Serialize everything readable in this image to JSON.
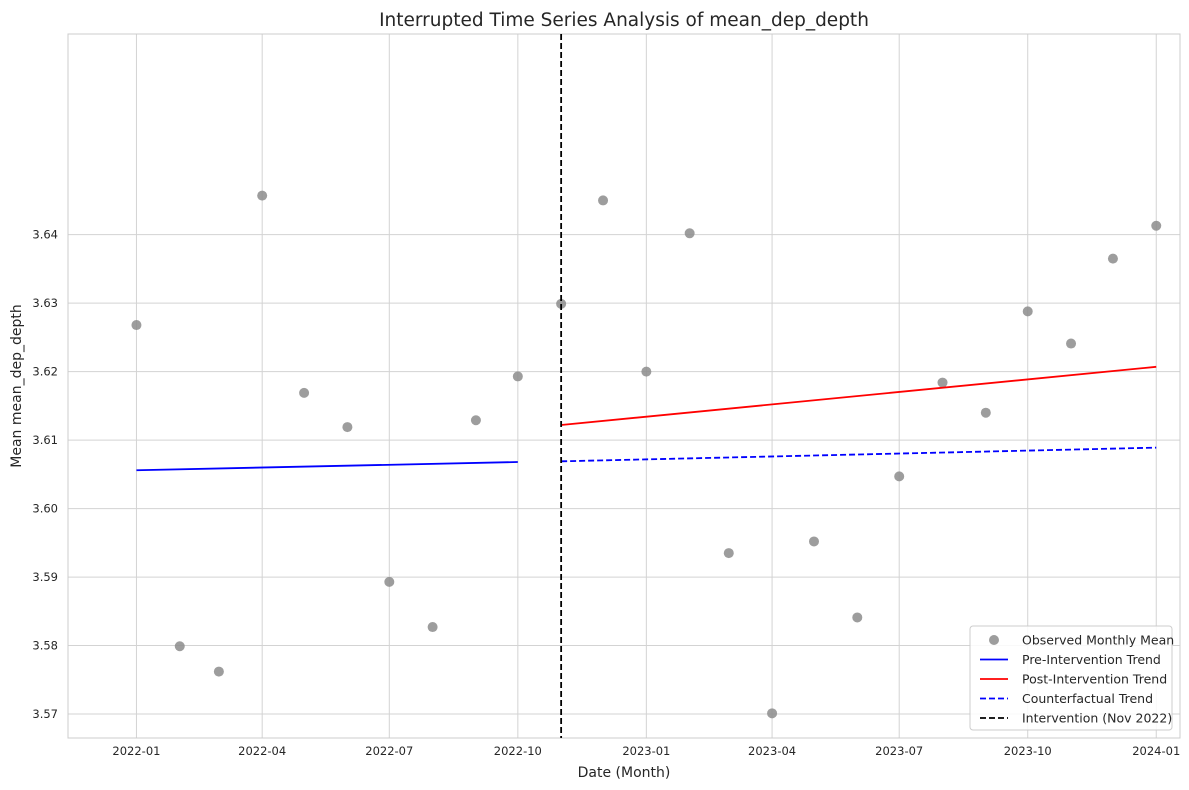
{
  "chart_data": {
    "type": "scatter",
    "title": "Interrupted Time Series Analysis of mean_dep_depth",
    "xlabel": "Date (Month)",
    "ylabel": "Mean mean_dep_depth",
    "xlim": [
      "2021-11-13",
      "2024-01-18"
    ],
    "ylim": [
      3.5665,
      3.6693
    ],
    "x_ticks": [
      "2022-01",
      "2022-04",
      "2022-07",
      "2022-10",
      "2023-01",
      "2023-04",
      "2023-07",
      "2023-10",
      "2024-01"
    ],
    "y_ticks": [
      3.57,
      3.58,
      3.59,
      3.6,
      3.61,
      3.62,
      3.63,
      3.64
    ],
    "grid": true,
    "legend_position": "lower-right",
    "series": [
      {
        "name": "Observed Monthly Mean",
        "kind": "scatter",
        "color": "#8c8c8c",
        "x": [
          "2022-01-01",
          "2022-02-01",
          "2022-03-01",
          "2022-04-01",
          "2022-05-01",
          "2022-06-01",
          "2022-07-01",
          "2022-08-01",
          "2022-09-01",
          "2022-10-01",
          "2022-11-01",
          "2022-12-01",
          "2023-01-01",
          "2023-02-01",
          "2023-03-01",
          "2023-04-01",
          "2023-05-01",
          "2023-06-01",
          "2023-07-01",
          "2023-08-01",
          "2023-09-01",
          "2023-10-01",
          "2023-11-01",
          "2023-12-01",
          "2024-01-01"
        ],
        "y": [
          3.6268,
          3.5799,
          3.5762,
          3.6457,
          3.6169,
          3.6119,
          3.5893,
          3.5827,
          3.6129,
          3.6193,
          3.6299,
          3.645,
          3.62,
          3.6402,
          3.5935,
          3.5701,
          3.5952,
          3.5841,
          3.6047,
          3.6184,
          3.614,
          3.6288,
          3.6241,
          3.6365,
          3.6413
        ]
      },
      {
        "name": "Pre-Intervention Trend",
        "kind": "line",
        "color": "#0000ff",
        "dash": "solid",
        "x": [
          "2022-01-01",
          "2022-10-01"
        ],
        "y": [
          3.6056,
          3.6068
        ]
      },
      {
        "name": "Post-Intervention Trend",
        "kind": "line",
        "color": "#ff0000",
        "dash": "solid",
        "x": [
          "2022-11-01",
          "2024-01-01"
        ],
        "y": [
          3.6122,
          3.6207
        ]
      },
      {
        "name": "Counterfactual Trend",
        "kind": "line",
        "color": "#0000ff",
        "dash": "dashed",
        "x": [
          "2022-11-01",
          "2024-01-01"
        ],
        "y": [
          3.6069,
          3.6089
        ]
      },
      {
        "name": "Intervention (Nov 2022)",
        "kind": "vline",
        "color": "#000000",
        "dash": "dashed",
        "x": [
          "2022-11-01"
        ]
      }
    ]
  }
}
